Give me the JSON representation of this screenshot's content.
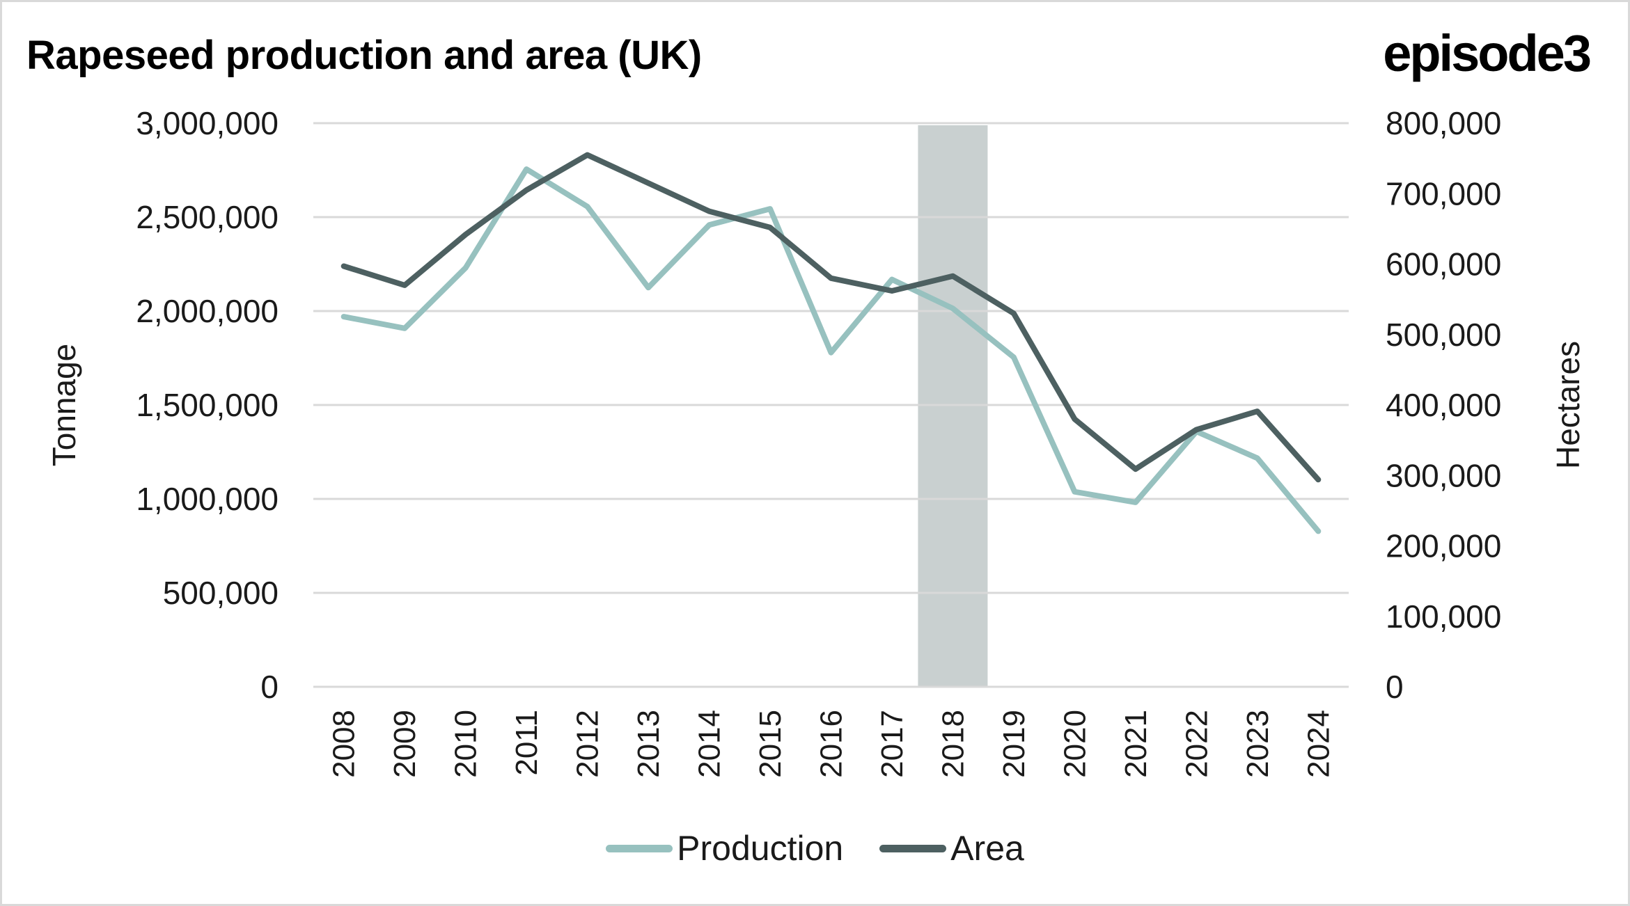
{
  "header": {
    "title": "Rapeseed production and area (UK)",
    "logo": "episode3"
  },
  "colors": {
    "production": "#97c1bf",
    "area": "#4d6061",
    "highlight_band": "#c9d0d0",
    "gridline": "#d9d9d9"
  },
  "chart_data": {
    "type": "line",
    "title": "Rapeseed production and area (UK)",
    "categories": [
      "2008",
      "2009",
      "2010",
      "2011",
      "2012",
      "2013",
      "2014",
      "2015",
      "2016",
      "2017",
      "2018",
      "2019",
      "2020",
      "2021",
      "2022",
      "2023",
      "2024"
    ],
    "series": [
      {
        "name": "Production",
        "axis": "left",
        "values": [
          1970000,
          1908000,
          2230000,
          2755000,
          2556000,
          2125000,
          2458000,
          2544000,
          1779000,
          2168000,
          2014000,
          1754000,
          1038000,
          982000,
          1359000,
          1217000,
          828000
        ]
      },
      {
        "name": "Area",
        "axis": "right",
        "values": [
          597000,
          570000,
          642000,
          705000,
          755000,
          715000,
          675000,
          652000,
          580000,
          562000,
          583000,
          530000,
          380000,
          309000,
          365000,
          391000,
          294000
        ]
      }
    ],
    "highlight": {
      "category": "2018",
      "label": ""
    },
    "ylabel": "Tonnage",
    "y2label": "Hectares",
    "xlabel": "",
    "ylim": [
      0,
      3000000
    ],
    "y2lim": [
      0,
      800000
    ],
    "yticks": [
      "0",
      "500,000",
      "1,000,000",
      "1,500,000",
      "2,000,000",
      "2,500,000",
      "3,000,000"
    ],
    "y2ticks": [
      "0",
      "100,000",
      "200,000",
      "300,000",
      "400,000",
      "500,000",
      "600,000",
      "700,000",
      "800,000"
    ],
    "ytick_values": [
      0,
      500000,
      1000000,
      1500000,
      2000000,
      2500000,
      3000000
    ],
    "y2tick_values": [
      0,
      100000,
      200000,
      300000,
      400000,
      500000,
      600000,
      700000,
      800000
    ],
    "grid": true,
    "legend": {
      "placement": "bottom",
      "entries": [
        "Production",
        "Area"
      ]
    }
  }
}
